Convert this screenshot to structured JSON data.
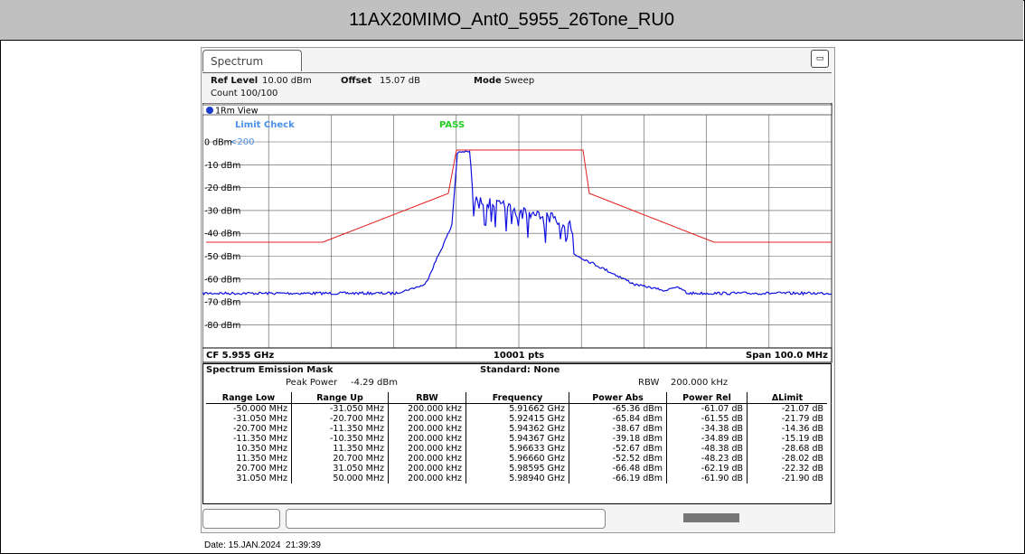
{
  "header": {
    "title": "11AX20MIMO_Ant0_5955_26Tone_RU0"
  },
  "screen": {
    "tab": "Spectrum",
    "ref_level_label": "Ref Level",
    "ref_level": "10.00 dBm",
    "offset_label": "Offset",
    "offset": "15.07 dB",
    "mode_label": "Mode",
    "mode": "Sweep",
    "count": "Count 100/100",
    "view": "1Rm View",
    "limit_check": "Limit Check",
    "pass": "PASS",
    "limit_name": "<200",
    "y_labels": [
      "0 dBm",
      "-10 dBm",
      "-20 dBm",
      "-30 dBm",
      "-40 dBm",
      "-50 dBm",
      "-60 dBm",
      "-70 dBm",
      "-80 dBm"
    ],
    "cf": "CF 5.955 GHz",
    "points": "10001 pts",
    "span": "Span 100.0 MHz"
  },
  "table": {
    "title": "Spectrum Emission Mask",
    "standard": "Standard: None",
    "peak_power_label": "Peak Power",
    "peak_power": "-4.29 dBm",
    "rbw_label": "RBW",
    "rbw": "200.000 kHz",
    "columns": [
      "Range Low",
      "Range Up",
      "RBW",
      "Frequency",
      "Power Abs",
      "Power Rel",
      "ΔLimit"
    ],
    "rows": [
      [
        "-50.000 MHz",
        "-31.050 MHz",
        "200.000 kHz",
        "5.91662 GHz",
        "-65.36 dBm",
        "-61.07 dB",
        "-21.07 dB"
      ],
      [
        "-31.050 MHz",
        "-20.700 MHz",
        "200.000 kHz",
        "5.92415 GHz",
        "-65.84 dBm",
        "-61.55 dB",
        "-21.79 dB"
      ],
      [
        "-20.700 MHz",
        "-11.350 MHz",
        "200.000 kHz",
        "5.94362 GHz",
        "-38.67 dBm",
        "-34.38 dB",
        "-14.36 dB"
      ],
      [
        "-11.350 MHz",
        "-10.350 MHz",
        "200.000 kHz",
        "5.94367 GHz",
        "-39.18 dBm",
        "-34.89 dB",
        "-15.19 dB"
      ],
      [
        "10.350 MHz",
        "11.350 MHz",
        "200.000 kHz",
        "5.96633 GHz",
        "-52.67 dBm",
        "-48.38 dB",
        "-28.68 dB"
      ],
      [
        "11.350 MHz",
        "20.700 MHz",
        "200.000 kHz",
        "5.96660 GHz",
        "-52.52 dBm",
        "-48.23 dB",
        "-28.02 dB"
      ],
      [
        "20.700 MHz",
        "31.050 MHz",
        "200.000 kHz",
        "5.98595 GHz",
        "-66.48 dBm",
        "-62.19 dB",
        "-22.32 dB"
      ],
      [
        "31.050 MHz",
        "50.000 MHz",
        "200.000 kHz",
        "5.98940 GHz",
        "-66.19 dBm",
        "-61.90 dB",
        "-21.90 dB"
      ]
    ]
  },
  "footer": {
    "date": "Date: 15.JAN.2024  21:39:39"
  }
}
